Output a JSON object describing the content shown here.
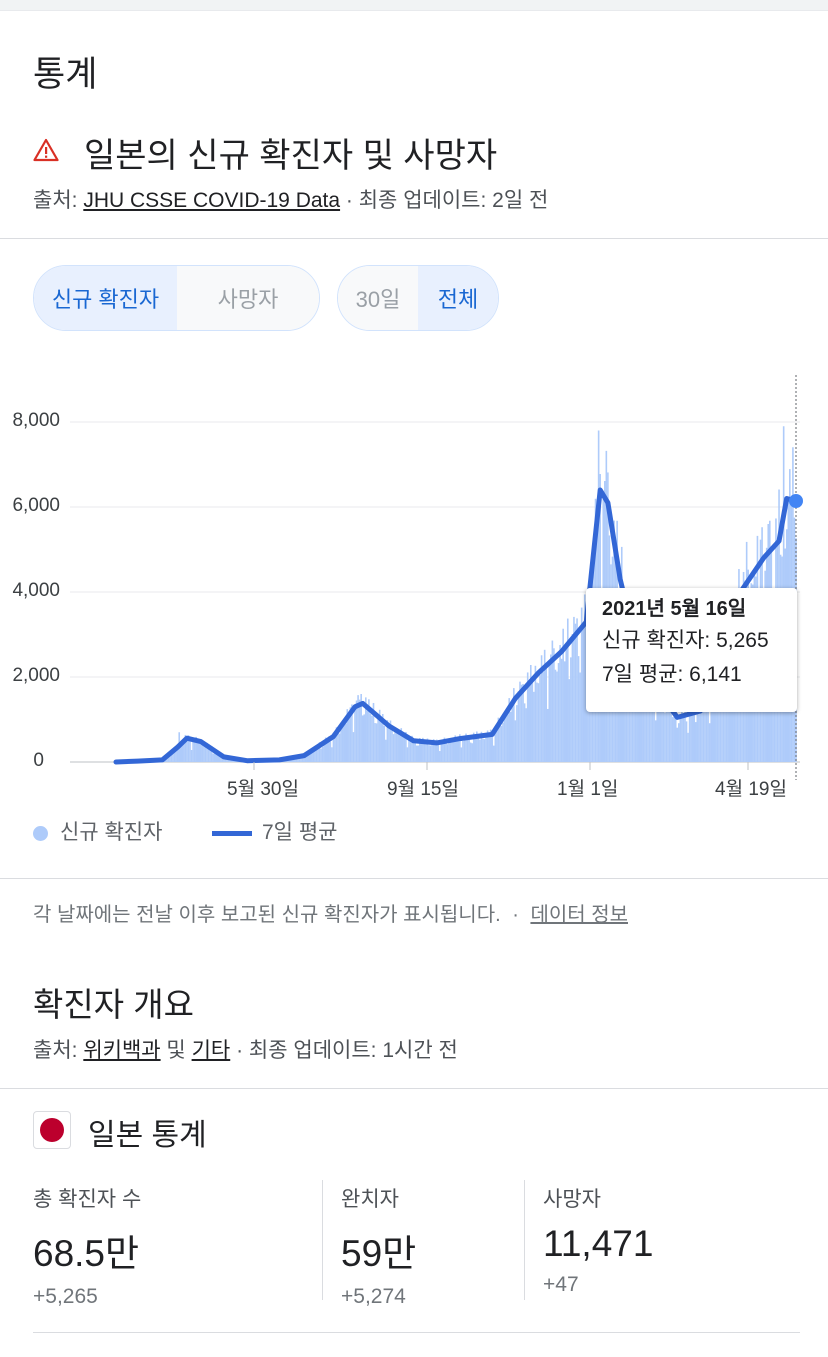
{
  "section_title": "통계",
  "chart_card": {
    "title": "일본의 신규 확진자 및 사망자",
    "source_prefix": "출처: ",
    "source_link": "JHU CSSE COVID-19 Data",
    "source_suffix": " · 최종 업데이트: 2일 전",
    "metric_toggle": [
      "신규 확진자",
      "사망자"
    ],
    "range_toggle": [
      "30일",
      "전체"
    ],
    "selected_metric": "신규 확진자",
    "selected_range": "전체",
    "accent_color": "#1967d2",
    "bar_color": "#aecbfa",
    "line_color": "#3367d6",
    "tooltip": {
      "date": "2021년 5월 16일",
      "cases_line": "신규 확진자: 5,265",
      "avg_line": "7일 평균: 6,141"
    },
    "note": "각 날짜에는 전날 이후 보고된 신규 확진자가 표시됩니다.",
    "note_sep": " · ",
    "note_link": "데이터 정보"
  },
  "chart_data": {
    "type": "bar",
    "legend": [
      "신규 확진자",
      "7일 평균"
    ],
    "ylim": [
      0,
      8000
    ],
    "yticks": [
      "8,000",
      "6,000",
      "4,000",
      "2,000",
      "0"
    ],
    "xticks": [
      "5월 30일",
      "9월 15일",
      "1월 1일",
      "4월 19일"
    ],
    "grid": true,
    "x_range": [
      "2020-03-01",
      "2021-05-16"
    ],
    "series": [
      {
        "name": "7일 평균",
        "kind": "line",
        "points": [
          [
            "2020-03-01",
            0
          ],
          [
            "2020-03-15",
            20
          ],
          [
            "2020-03-31",
            50
          ],
          [
            "2020-04-10",
            350
          ],
          [
            "2020-04-16",
            560
          ],
          [
            "2020-04-25",
            480
          ],
          [
            "2020-05-10",
            120
          ],
          [
            "2020-05-25",
            30
          ],
          [
            "2020-06-15",
            50
          ],
          [
            "2020-07-01",
            150
          ],
          [
            "2020-07-20",
            600
          ],
          [
            "2020-08-03",
            1300
          ],
          [
            "2020-08-08",
            1380
          ],
          [
            "2020-08-25",
            850
          ],
          [
            "2020-09-10",
            500
          ],
          [
            "2020-09-25",
            450
          ],
          [
            "2020-10-10",
            550
          ],
          [
            "2020-10-31",
            650
          ],
          [
            "2020-11-15",
            1500
          ],
          [
            "2020-11-30",
            2100
          ],
          [
            "2020-12-15",
            2600
          ],
          [
            "2020-12-31",
            3300
          ],
          [
            "2021-01-09",
            6400
          ],
          [
            "2021-01-14",
            6100
          ],
          [
            "2021-01-22",
            4300
          ],
          [
            "2021-02-05",
            2200
          ],
          [
            "2021-02-28",
            1050
          ],
          [
            "2021-03-15",
            1200
          ],
          [
            "2021-03-31",
            2200
          ],
          [
            "2021-04-10",
            4000
          ],
          [
            "2021-04-25",
            4800
          ],
          [
            "2021-05-05",
            5200
          ],
          [
            "2021-05-10",
            6200
          ],
          [
            "2021-05-16",
            6141
          ]
        ]
      },
      {
        "name": "신규 확진자",
        "kind": "bars",
        "peaks": [
          [
            "2020-04-11",
            700
          ],
          [
            "2020-08-07",
            1600
          ],
          [
            "2021-01-08",
            7800
          ],
          [
            "2021-04-28",
            5600
          ],
          [
            "2021-05-08",
            7900
          ],
          [
            "2021-05-16",
            5265
          ]
        ]
      }
    ]
  },
  "overview": {
    "title": "확진자 개요",
    "source_prefix": "출처: ",
    "source_link1": "위키백과",
    "source_mid": " 및 ",
    "source_link2": "기타",
    "source_suffix": " · 최종 업데이트: 1시간 전",
    "country": "일본 통계",
    "flag_color": "#bc002d",
    "stats": [
      {
        "label": "총 확진자 수",
        "value": "68.5만",
        "delta": "+5,265"
      },
      {
        "label": "완치자",
        "value": "59만",
        "delta": "+5,274"
      },
      {
        "label": "사망자",
        "value": "11,471",
        "delta": "+47"
      }
    ]
  }
}
